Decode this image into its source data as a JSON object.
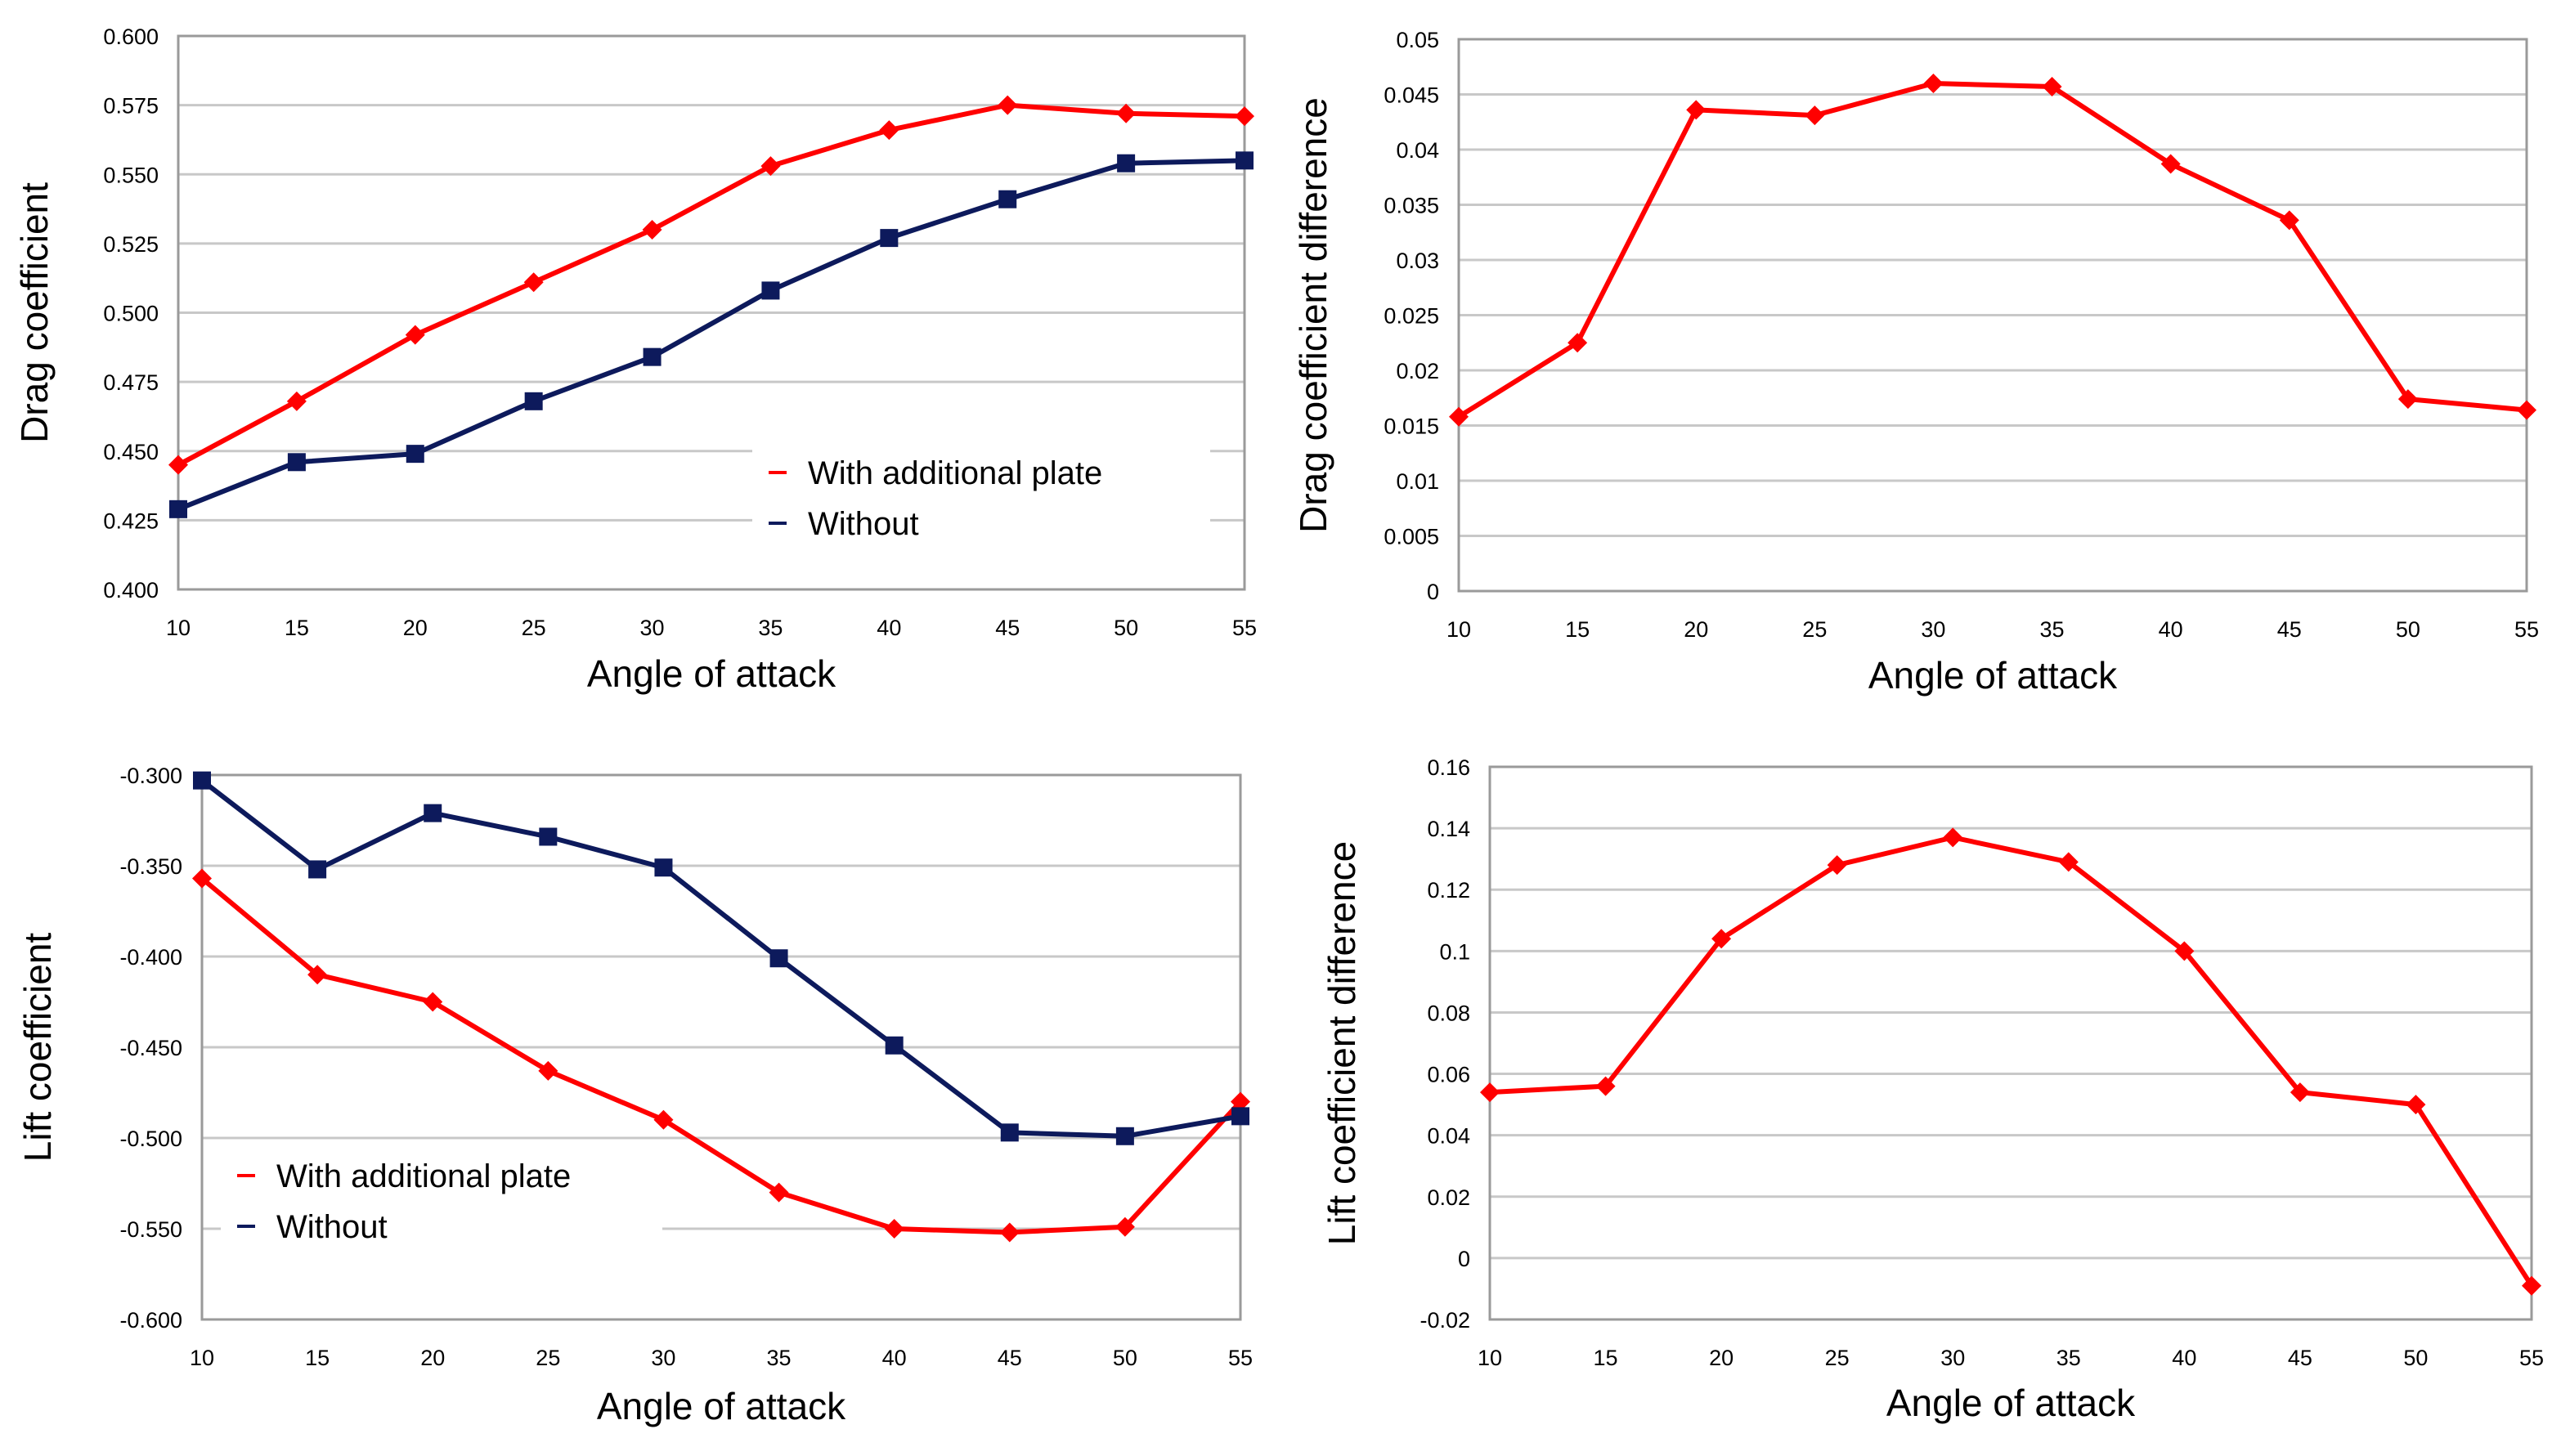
{
  "chart_data": [
    {
      "type": "line",
      "title": "",
      "xlabel": "Angle of attack",
      "ylabel": "Drag coefficient",
      "ylim": [
        0.4,
        0.6
      ],
      "yticks": [
        "0.400",
        "0.425",
        "0.450",
        "0.475",
        "0.500",
        "0.525",
        "0.550",
        "0.575",
        "0.600"
      ],
      "legend_position": "center-right",
      "categories": [
        "10",
        "15",
        "20",
        "25",
        "30",
        "35",
        "40",
        "45",
        "50",
        "55"
      ],
      "series": [
        {
          "name": "With additional plate",
          "color": "#ff0000",
          "marker": "diamond",
          "values": [
            0.445,
            0.468,
            0.492,
            0.511,
            0.53,
            0.553,
            0.566,
            0.575,
            0.572,
            0.571
          ]
        },
        {
          "name": "Without",
          "color": "#0d1a5c",
          "marker": "square",
          "values": [
            0.429,
            0.446,
            0.449,
            0.468,
            0.484,
            0.508,
            0.527,
            0.541,
            0.554,
            0.555
          ]
        }
      ]
    },
    {
      "type": "line",
      "title": "",
      "xlabel": "Angle of attack",
      "ylabel": "Drag coefficient difference",
      "ylim": [
        0,
        0.05
      ],
      "yticks": [
        "0",
        "0.005",
        "0.01",
        "0.015",
        "0.02",
        "0.025",
        "0.03",
        "0.035",
        "0.04",
        "0.045",
        "0.05"
      ],
      "categories": [
        "10",
        "15",
        "20",
        "25",
        "30",
        "35",
        "40",
        "45",
        "50",
        "55"
      ],
      "series": [
        {
          "name": "",
          "color": "#ff0000",
          "marker": "diamond",
          "values": [
            0.0158,
            0.0225,
            0.0436,
            0.0431,
            0.046,
            0.0457,
            0.0387,
            0.0336,
            0.0174,
            0.0164
          ]
        }
      ]
    },
    {
      "type": "line",
      "title": "",
      "xlabel": "Angle of attack",
      "ylabel": "Lift coefficient",
      "ylim": [
        -0.6,
        -0.3
      ],
      "yticks": [
        "-0.600",
        "-0.550",
        "-0.500",
        "-0.450",
        "-0.400",
        "-0.350",
        "-0.300"
      ],
      "legend_position": "bottom-left",
      "categories": [
        "10",
        "15",
        "20",
        "25",
        "30",
        "35",
        "40",
        "45",
        "50",
        "55"
      ],
      "series": [
        {
          "name": "With additional plate",
          "color": "#ff0000",
          "marker": "diamond",
          "values": [
            -0.357,
            -0.41,
            -0.425,
            -0.463,
            -0.49,
            -0.53,
            -0.55,
            -0.552,
            -0.549,
            -0.48
          ]
        },
        {
          "name": "Without",
          "color": "#0d1a5c",
          "marker": "square",
          "values": [
            -0.303,
            -0.352,
            -0.321,
            -0.334,
            -0.351,
            -0.401,
            -0.449,
            -0.497,
            -0.499,
            -0.488
          ]
        }
      ]
    },
    {
      "type": "line",
      "title": "",
      "xlabel": "Angle of attack",
      "ylabel": "Lift coefficient difference",
      "ylim": [
        -0.02,
        0.16
      ],
      "yticks": [
        "-0.02",
        "0",
        "0.02",
        "0.04",
        "0.06",
        "0.08",
        "0.1",
        "0.12",
        "0.14",
        "0.16"
      ],
      "categories": [
        "10",
        "15",
        "20",
        "25",
        "30",
        "35",
        "40",
        "45",
        "50",
        "55"
      ],
      "series": [
        {
          "name": "",
          "color": "#ff0000",
          "marker": "diamond",
          "values": [
            0.054,
            0.056,
            0.104,
            0.128,
            0.137,
            0.129,
            0.1,
            0.054,
            0.05,
            -0.009
          ]
        }
      ]
    }
  ]
}
